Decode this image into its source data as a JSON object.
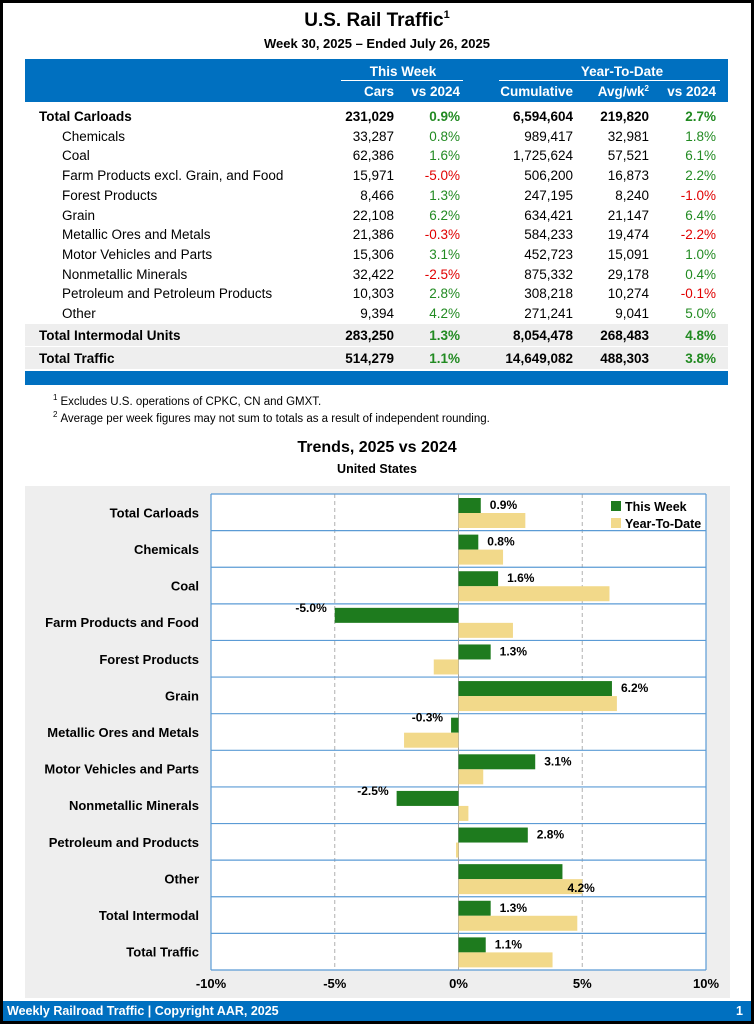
{
  "title": "U.S. Rail Traffic",
  "title_sup": "1",
  "subtitle": "Week 30, 2025 – Ended July 26, 2025",
  "table": {
    "group_this_week": "This Week",
    "group_ytd": "Year-To-Date",
    "col_cars": "Cars",
    "col_vs2024": "vs 2024",
    "col_cumulative": "Cumulative",
    "col_avg": "Avg/wk",
    "col_avg_sup": "2",
    "col_vs2024_ytd": "vs 2024",
    "rows": [
      {
        "label": "Total Carloads",
        "cars": "231,029",
        "tw_vs": "0.9%",
        "cum": "6,594,604",
        "avg": "219,820",
        "ytd_vs": "2.7%"
      },
      {
        "label": "Chemicals",
        "cars": "33,287",
        "tw_vs": "0.8%",
        "cum": "989,417",
        "avg": "32,981",
        "ytd_vs": "1.8%"
      },
      {
        "label": "Coal",
        "cars": "62,386",
        "tw_vs": "1.6%",
        "cum": "1,725,624",
        "avg": "57,521",
        "ytd_vs": "6.1%"
      },
      {
        "label": "Farm Products excl. Grain, and Food",
        "cars": "15,971",
        "tw_vs": "-5.0%",
        "cum": "506,200",
        "avg": "16,873",
        "ytd_vs": "2.2%"
      },
      {
        "label": "Forest Products",
        "cars": "8,466",
        "tw_vs": "1.3%",
        "cum": "247,195",
        "avg": "8,240",
        "ytd_vs": "-1.0%"
      },
      {
        "label": "Grain",
        "cars": "22,108",
        "tw_vs": "6.2%",
        "cum": "634,421",
        "avg": "21,147",
        "ytd_vs": "6.4%"
      },
      {
        "label": "Metallic Ores and Metals",
        "cars": "21,386",
        "tw_vs": "-0.3%",
        "cum": "584,233",
        "avg": "19,474",
        "ytd_vs": "-2.2%"
      },
      {
        "label": "Motor Vehicles and Parts",
        "cars": "15,306",
        "tw_vs": "3.1%",
        "cum": "452,723",
        "avg": "15,091",
        "ytd_vs": "1.0%"
      },
      {
        "label": "Nonmetallic Minerals",
        "cars": "32,422",
        "tw_vs": "-2.5%",
        "cum": "875,332",
        "avg": "29,178",
        "ytd_vs": "0.4%"
      },
      {
        "label": "Petroleum and Petroleum Products",
        "cars": "10,303",
        "tw_vs": "2.8%",
        "cum": "308,218",
        "avg": "10,274",
        "ytd_vs": "-0.1%"
      },
      {
        "label": "Other",
        "cars": "9,394",
        "tw_vs": "4.2%",
        "cum": "271,241",
        "avg": "9,041",
        "ytd_vs": "5.0%"
      },
      {
        "label": "Total Intermodal Units",
        "cars": "283,250",
        "tw_vs": "1.3%",
        "cum": "8,054,478",
        "avg": "268,483",
        "ytd_vs": "4.8%"
      },
      {
        "label": "Total Traffic",
        "cars": "514,279",
        "tw_vs": "1.1%",
        "cum": "14,649,082",
        "avg": "488,303",
        "ytd_vs": "3.8%"
      }
    ]
  },
  "footnotes": [
    {
      "mark": "1",
      "text": "Excludes U.S. operations of CPKC, CN and GMXT."
    },
    {
      "mark": "2",
      "text": "Average per week figures may not sum to totals as a result of independent rounding."
    }
  ],
  "colors": {
    "header_blue": "#0070c0",
    "this_week_bar": "#1e7b1e",
    "ytd_bar": "#f2d98a",
    "positive_text": "#218a21",
    "negative_text": "#e00000"
  },
  "chart_data": {
    "type": "bar",
    "orientation": "horizontal",
    "title": "Trends, 2025 vs 2024",
    "subtitle": "United States",
    "categories": [
      "Total Carloads",
      "Chemicals",
      "Coal",
      "Farm Products and Food",
      "Forest Products",
      "Grain",
      "Metallic Ores and Metals",
      "Motor Vehicles and Parts",
      "Nonmetallic Minerals",
      "Petroleum and Products",
      "Other",
      "Total Intermodal",
      "Total Traffic"
    ],
    "series": [
      {
        "name": "This Week",
        "values": [
          0.9,
          0.8,
          1.6,
          -5.0,
          1.3,
          6.2,
          -0.3,
          3.1,
          -2.5,
          2.8,
          4.2,
          1.3,
          1.1
        ],
        "labels": [
          "0.9%",
          "0.8%",
          "1.6%",
          "-5.0%",
          "1.3%",
          "6.2%",
          "-0.3%",
          "3.1%",
          "-2.5%",
          "2.8%",
          "4.2%",
          "1.3%",
          "1.1%"
        ]
      },
      {
        "name": "Year-To-Date",
        "values": [
          2.7,
          1.8,
          6.1,
          2.2,
          -1.0,
          6.4,
          -2.2,
          1.0,
          0.4,
          -0.1,
          5.0,
          4.8,
          3.8
        ]
      }
    ],
    "xlim": [
      -10,
      10
    ],
    "xticks": [
      -10,
      -5,
      0,
      5,
      10
    ],
    "xtick_labels": [
      "-10%",
      "-5%",
      "0%",
      "5%",
      "10%"
    ],
    "legend": "top-right",
    "grid": "vertical dashed"
  },
  "footer": {
    "text": "Weekly Railroad Traffic | Copyright AAR, 2025",
    "page": "1"
  }
}
